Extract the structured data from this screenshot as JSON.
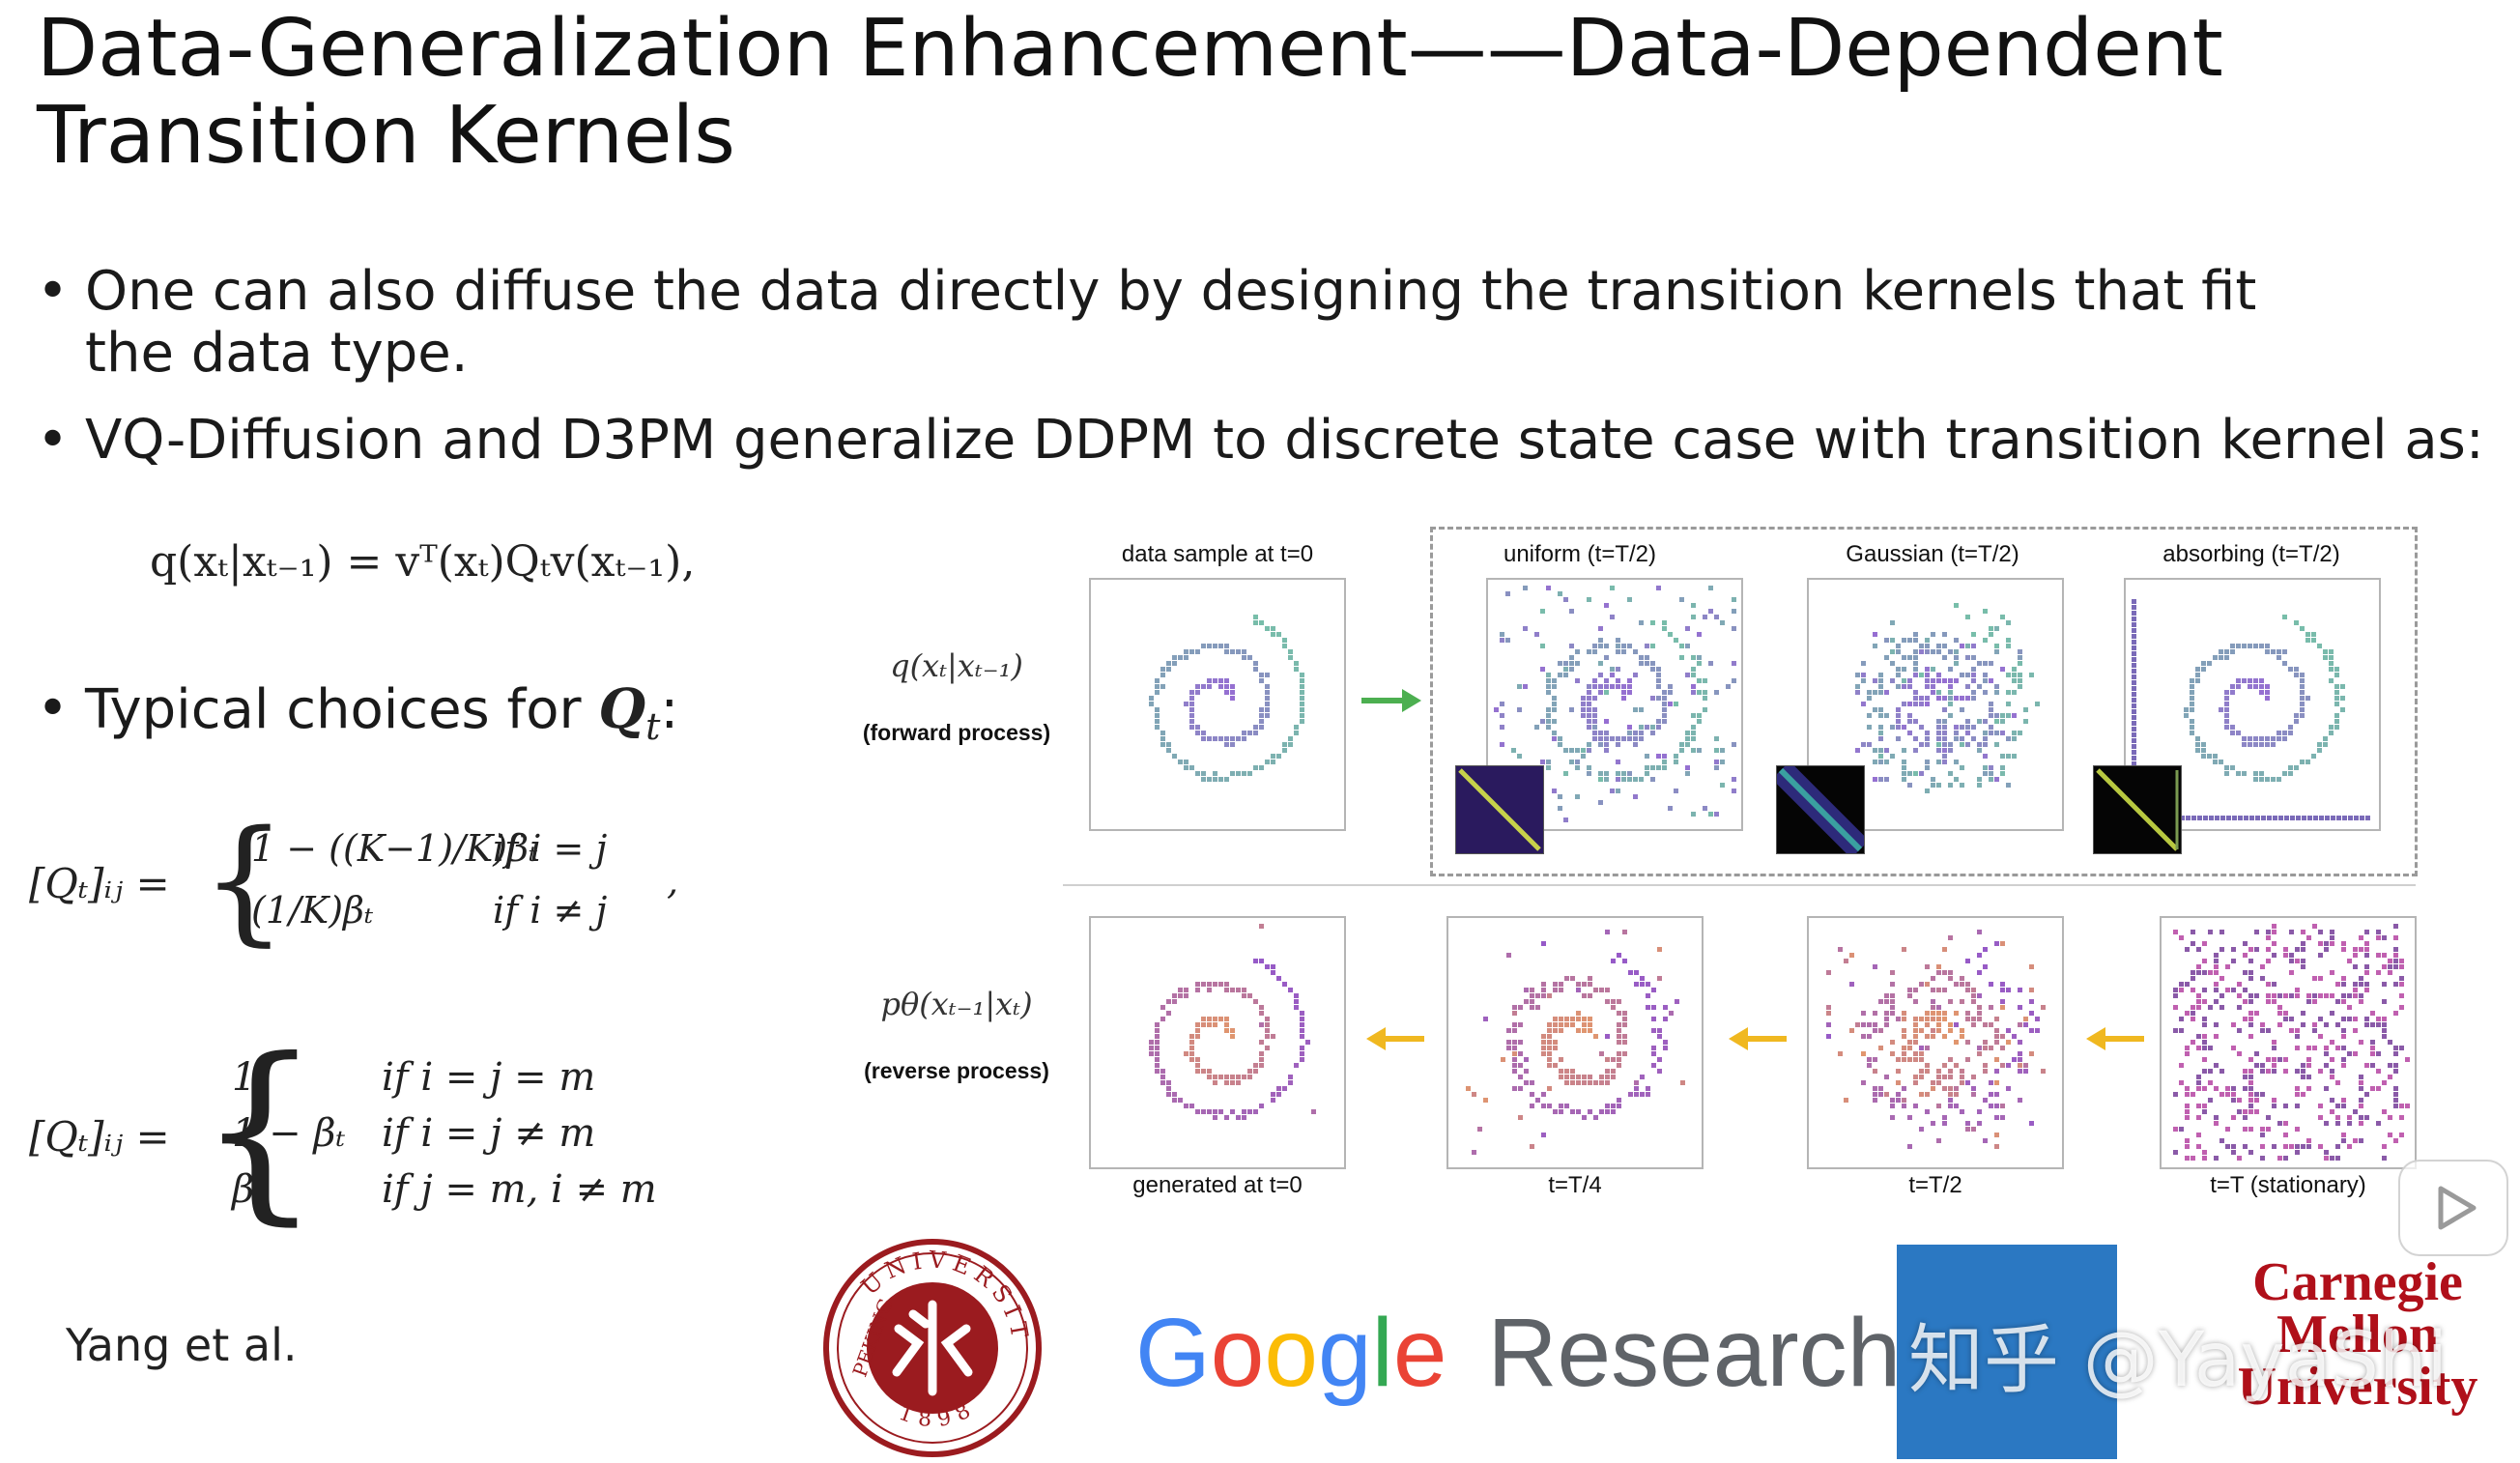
{
  "slide": {
    "title": "Data-Generalization Enhancement——Data-Dependent Transition Kernels",
    "bullets": [
      "One can also diffuse the data directly by designing the transition kernels that fit the data type.",
      "VQ-Diffusion and D3PM generalize DDPM to discrete state case with transition kernel as:",
      "Typical choices for"
    ],
    "bullet3_symbol": "Q",
    "bullet3_sub": "t",
    "bullet3_colon": ":",
    "citation": "Yang et al."
  },
  "equations": {
    "kernel_eq": "q(xₜ|xₜ₋₁) = vᵀ(xₜ)Qₜv(xₜ₋₁),",
    "uniform": {
      "lhs": "[Qₜ]ᵢⱼ =",
      "cases": [
        {
          "value": "1 − ((K−1)/K)βₜ",
          "cond": "if   i = j"
        },
        {
          "value": "(1/K)βₜ",
          "cond": "if   i ≠ j"
        }
      ],
      "trail": ","
    },
    "absorbing": {
      "lhs": "[Qₜ]ᵢⱼ =",
      "cases": [
        {
          "value": "1",
          "cond": "if   i = j = m"
        },
        {
          "value": "1 − βₜ",
          "cond": "if   i = j ≠ m"
        },
        {
          "value": "βₜ",
          "cond": "if   j = m, i ≠ m"
        }
      ]
    }
  },
  "figure": {
    "forward_expr": "q(xₜ|xₜ₋₁)",
    "forward_label": "(forward process)",
    "reverse_expr": "pθ(xₜ₋₁|xₜ)",
    "reverse_label": "(reverse process)",
    "top_panels": [
      "data sample at t=0",
      "uniform (t=T/2)",
      "Gaussian (t=T/2)",
      "absorbing (t=T/2)"
    ],
    "bottom_panels": [
      "generated at t=0",
      "t=T/4",
      "t=T/2",
      "t=T (stationary)"
    ],
    "colors": {
      "forward_arrow": "#4caf50",
      "reverse_arrow": "#f0b820"
    }
  },
  "logos": {
    "pku_ring_top": "UNIVERSITY",
    "pku_ring_left": "PEKING",
    "pku_year": "1898",
    "google_letters": [
      "G",
      "o",
      "o",
      "g",
      "l",
      "e"
    ],
    "google_colors": [
      "#4285F4",
      "#EA4335",
      "#FBBC05",
      "#4285F4",
      "#34A853",
      "#EA4335"
    ],
    "research": "Research",
    "cmu_lines": [
      "Carnegie",
      "Mellon",
      "University"
    ]
  },
  "watermark": {
    "text": "知乎 @YayaShi"
  }
}
